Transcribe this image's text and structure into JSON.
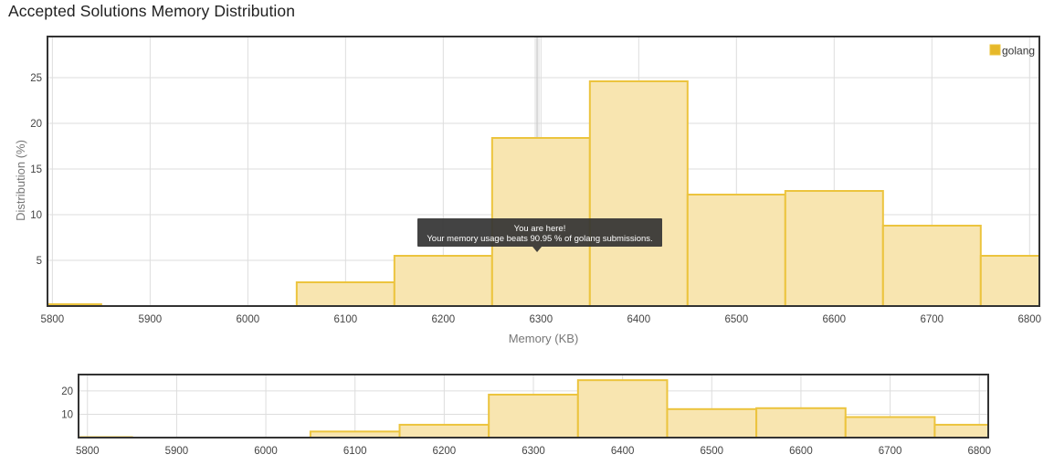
{
  "page": {
    "title": "Accepted Solutions Memory Distribution"
  },
  "tooltip": {
    "line1": "You are here!",
    "line2": "Your memory usage beats 90.95 % of golang submissions."
  },
  "colors": {
    "bar_fill": "#f8e5b0",
    "bar_stroke": "#ecc43e",
    "legend": "#e6b82a",
    "tooltip_bg": "#333333",
    "grid": "#dddddd",
    "frame": "#333333"
  },
  "chart_data": [
    {
      "type": "bar",
      "xlabel": "Memory (KB)",
      "ylabel": "Distribution (%)",
      "xlim": [
        5795,
        6810
      ],
      "ylim": [
        0,
        29.5
      ],
      "xticks": [
        5800,
        5900,
        6000,
        6100,
        6200,
        6300,
        6400,
        6500,
        6600,
        6700,
        6800
      ],
      "yticks": [
        5,
        10,
        15,
        20,
        25
      ],
      "grid": true,
      "legend_position": "top-right",
      "marker": 6296,
      "series": [
        {
          "name": "golang",
          "bins": [
            {
              "x0": 5795,
              "x1": 5850,
              "value": 0.2
            },
            {
              "x0": 6050,
              "x1": 6150,
              "value": 2.6
            },
            {
              "x0": 6150,
              "x1": 6250,
              "value": 5.5
            },
            {
              "x0": 6250,
              "x1": 6350,
              "value": 18.4
            },
            {
              "x0": 6350,
              "x1": 6450,
              "value": 24.6
            },
            {
              "x0": 6450,
              "x1": 6550,
              "value": 12.2
            },
            {
              "x0": 6550,
              "x1": 6650,
              "value": 12.6
            },
            {
              "x0": 6650,
              "x1": 6750,
              "value": 8.8
            },
            {
              "x0": 6750,
              "x1": 6810,
              "value": 5.5
            }
          ]
        }
      ]
    },
    {
      "type": "bar",
      "xlim": [
        5790,
        6810
      ],
      "ylim": [
        0,
        27
      ],
      "xticks": [
        5800,
        5900,
        6000,
        6100,
        6200,
        6300,
        6400,
        6500,
        6600,
        6700,
        6800
      ],
      "yticks": [
        10,
        20
      ],
      "grid": true,
      "series": [
        {
          "bins": [
            {
              "x0": 5790,
              "x1": 5850,
              "value": 0.2
            },
            {
              "x0": 6050,
              "x1": 6150,
              "value": 2.6
            },
            {
              "x0": 6150,
              "x1": 6250,
              "value": 5.5
            },
            {
              "x0": 6250,
              "x1": 6350,
              "value": 18.4
            },
            {
              "x0": 6350,
              "x1": 6450,
              "value": 24.6
            },
            {
              "x0": 6450,
              "x1": 6550,
              "value": 12.2
            },
            {
              "x0": 6550,
              "x1": 6650,
              "value": 12.6
            },
            {
              "x0": 6650,
              "x1": 6750,
              "value": 8.8
            },
            {
              "x0": 6750,
              "x1": 6810,
              "value": 5.5
            }
          ]
        }
      ]
    }
  ]
}
